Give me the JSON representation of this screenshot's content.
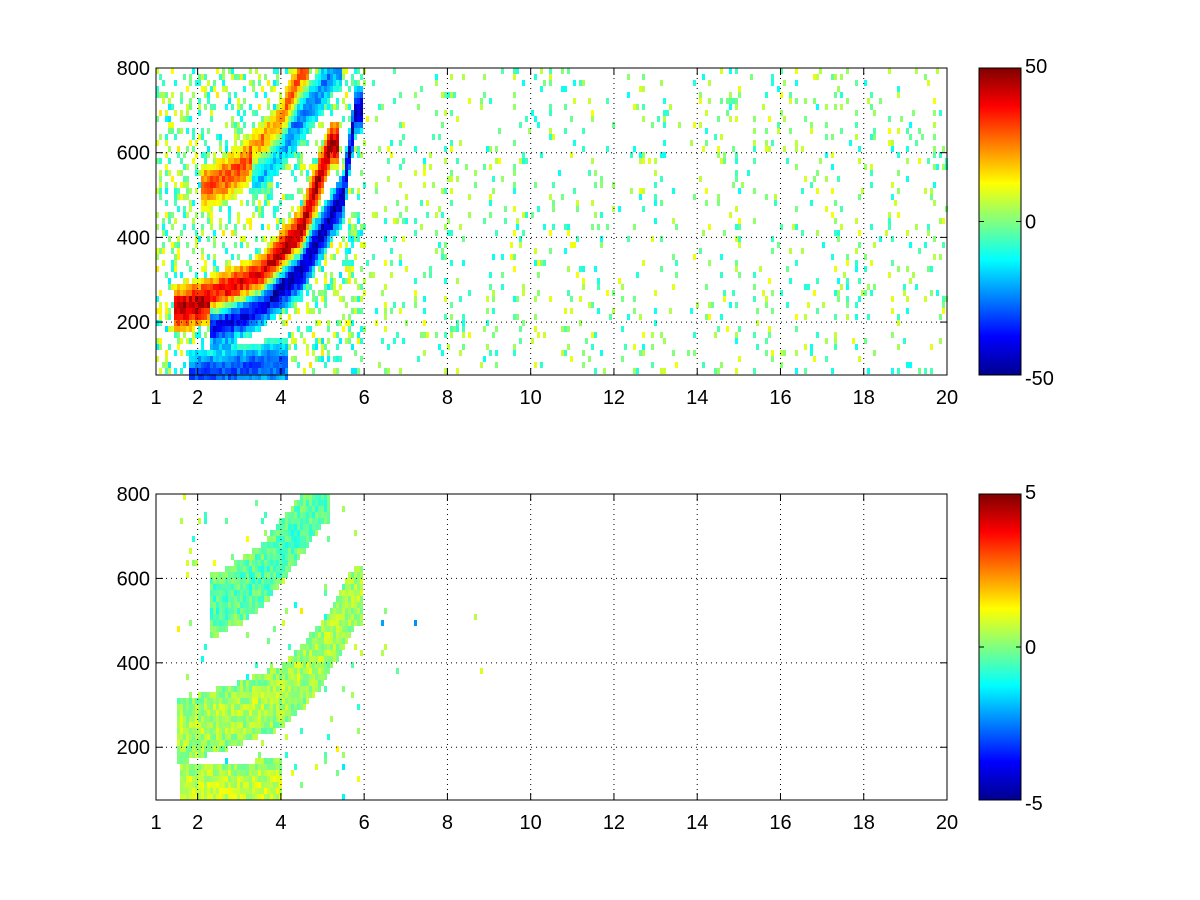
{
  "chart_data": [
    {
      "type": "heatmap",
      "title": "",
      "xlabel": "",
      "ylabel": "",
      "xlim": [
        1,
        20
      ],
      "ylim": [
        75,
        800
      ],
      "x_ticks": [
        1,
        2,
        4,
        6,
        8,
        10,
        12,
        14,
        16,
        18,
        20
      ],
      "x_tick_labels": [
        "1",
        "2",
        "4",
        "6",
        "8",
        "10",
        "12",
        "14",
        "16",
        "18",
        "20"
      ],
      "y_ticks": [
        200,
        400,
        600,
        800
      ],
      "y_tick_labels": [
        "200",
        "400",
        "600",
        "800"
      ],
      "grid": true,
      "colormap": "jet",
      "colorbar": {
        "min": -50,
        "max": 50,
        "ticks": [
          -50,
          0,
          50
        ],
        "tick_labels": [
          "-50",
          "0",
          "50"
        ]
      },
      "features": [
        {
          "kind": "ridge",
          "sign": "positive",
          "x": [
            1.6,
            2.5,
            3.5,
            4.5,
            5.2
          ],
          "y": [
            230,
            260,
            300,
            420,
            620
          ],
          "value": 45
        },
        {
          "kind": "ridge",
          "sign": "negative",
          "x": [
            2.5,
            3.5,
            4.5,
            5.5,
            5.8
          ],
          "y": [
            200,
            240,
            320,
            500,
            700
          ],
          "value": -45
        },
        {
          "kind": "ridge",
          "sign": "positive",
          "x": [
            2.3,
            3.0,
            4.0,
            4.5
          ],
          "y": [
            520,
            560,
            660,
            800
          ],
          "value": 30
        },
        {
          "kind": "ridge",
          "sign": "negative",
          "x": [
            3.5,
            4.2,
            4.8,
            5.3
          ],
          "y": [
            560,
            640,
            720,
            800
          ],
          "value": -25
        },
        {
          "kind": "ridge",
          "sign": "negative",
          "x": [
            2.0,
            3.0,
            4.0
          ],
          "y": [
            80,
            90,
            100
          ],
          "value": -30
        }
      ],
      "sparse_region": {
        "x": [
          6,
          20
        ],
        "y": [
          75,
          800
        ],
        "value_range": [
          -12,
          12
        ]
      },
      "dense_region": {
        "x": [
          1,
          6
        ],
        "y": [
          75,
          800
        ],
        "value_range": [
          -50,
          50
        ]
      }
    },
    {
      "type": "heatmap",
      "title": "",
      "xlabel": "",
      "ylabel": "",
      "xlim": [
        1,
        20
      ],
      "ylim": [
        75,
        800
      ],
      "x_ticks": [
        1,
        2,
        4,
        6,
        8,
        10,
        12,
        14,
        16,
        18,
        20
      ],
      "x_tick_labels": [
        "1",
        "2",
        "4",
        "6",
        "8",
        "10",
        "12",
        "14",
        "16",
        "18",
        "20"
      ],
      "y_ticks": [
        200,
        400,
        600,
        800
      ],
      "y_tick_labels": [
        "200",
        "400",
        "600",
        "800"
      ],
      "grid": true,
      "colormap": "jet",
      "colorbar": {
        "min": -5,
        "max": 5,
        "ticks": [
          -5,
          0,
          5
        ],
        "tick_labels": [
          "-5",
          "0",
          "5"
        ]
      },
      "features": [
        {
          "kind": "band",
          "x": [
            1.7,
            3.0,
            4.0,
            5.0,
            5.8
          ],
          "y": [
            240,
            280,
            320,
            420,
            560
          ],
          "value": 0.5
        },
        {
          "kind": "band",
          "x": [
            2.5,
            3.5,
            4.3,
            5.0
          ],
          "y": [
            540,
            600,
            700,
            800
          ],
          "value": -0.5
        },
        {
          "kind": "band",
          "x": [
            1.8,
            3.0,
            3.8
          ],
          "y": [
            85,
            90,
            95
          ],
          "value": 0.8
        }
      ],
      "sparse_region": {
        "x": [
          6,
          9
        ],
        "y": [
          350,
          550
        ],
        "value_range": [
          -3,
          1
        ]
      },
      "dense_region": {
        "x": [
          1.5,
          6
        ],
        "y": [
          75,
          800
        ],
        "value_range": [
          -2,
          2
        ]
      }
    }
  ]
}
